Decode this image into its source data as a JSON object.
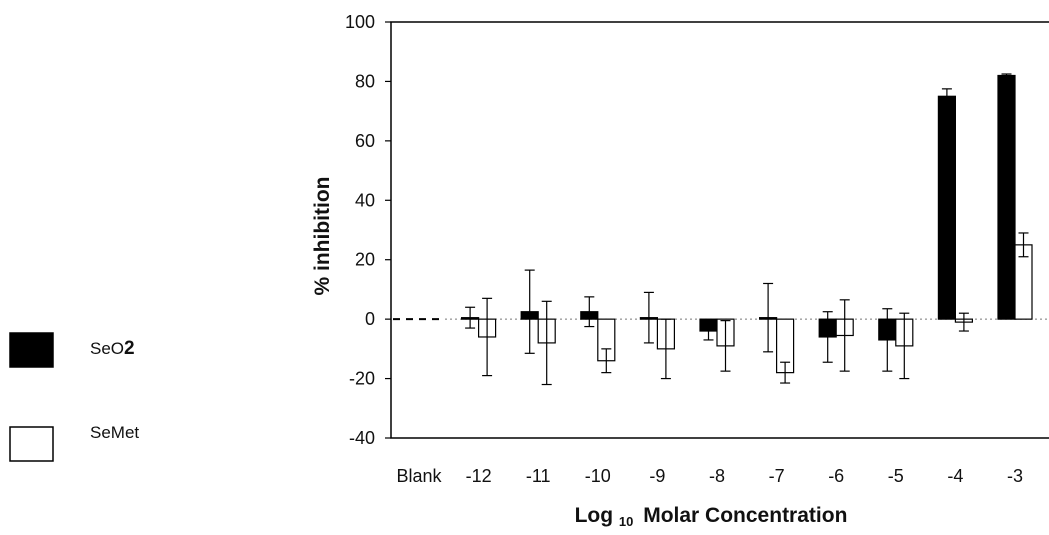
{
  "chart_data": {
    "type": "bar",
    "ylabel": "% inhibition",
    "xlabel": {
      "main": "Log",
      "sub": "10",
      "rest": "Molar Concentration"
    },
    "ylim": [
      -40,
      100
    ],
    "yticks": [
      "100",
      "80",
      "60",
      "40",
      "20",
      "0",
      "-20",
      "-40"
    ],
    "ytick_values": [
      100,
      80,
      60,
      40,
      20,
      0,
      -20,
      -40
    ],
    "categories": [
      "Blank",
      "-12",
      "-11",
      "-10",
      "-9",
      "-8",
      "-7",
      "-6",
      "-5",
      "-4",
      "-3"
    ],
    "baseline_style": "dashed",
    "series": [
      {
        "name": "SeO2",
        "name_parts": {
          "base": "SeO",
          "sub": "2"
        },
        "fill": "#000000",
        "values": [
          null,
          0.5,
          2.5,
          2.5,
          0.5,
          -4,
          0.5,
          -6,
          -7,
          75,
          82
        ],
        "errors": [
          null,
          3.5,
          14,
          5,
          8.5,
          3,
          11.5,
          8.5,
          10.5,
          2.5,
          0.5
        ]
      },
      {
        "name": "SeMet",
        "fill": "#ffffff",
        "values": [
          null,
          -6,
          -8,
          -14,
          -10,
          -9,
          -18,
          -5.5,
          -9,
          -1,
          25
        ],
        "errors": [
          null,
          13,
          14,
          4,
          10,
          8.5,
          3.5,
          12,
          11,
          3,
          4
        ]
      }
    ]
  }
}
